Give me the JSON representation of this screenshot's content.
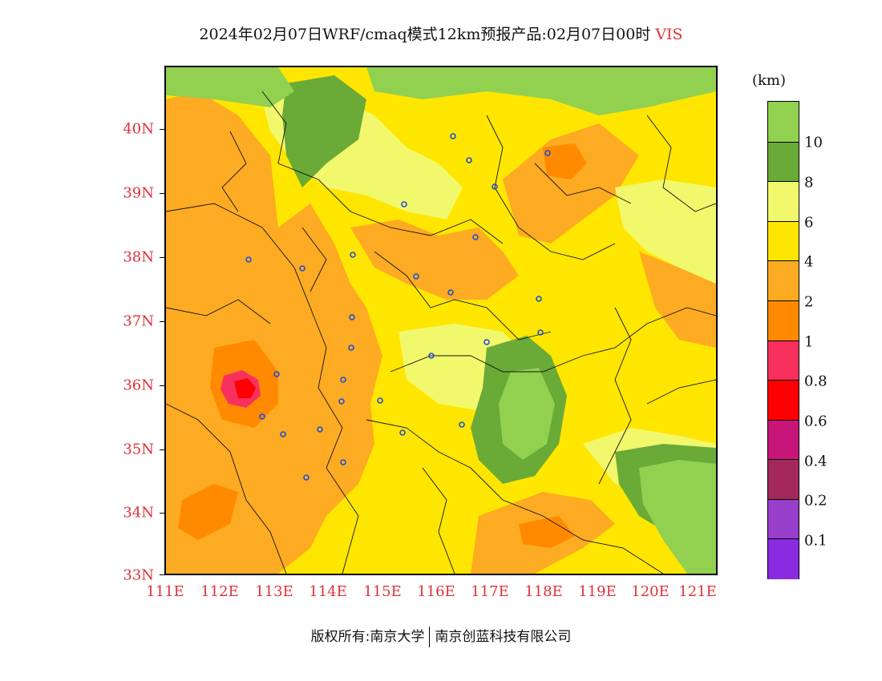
{
  "title": {
    "main": "2024年02月07日WRF/cmaq模式12km预报产品:02月07日00时",
    "variable": "VIS"
  },
  "map": {
    "lat_labels": [
      "40N",
      "39N",
      "38N",
      "37N",
      "36N",
      "35N",
      "34N",
      "33N"
    ],
    "lon_labels": [
      "111E",
      "112E",
      "113E",
      "114E",
      "115E",
      "116E",
      "117E",
      "118E",
      "119E",
      "120E",
      "121E"
    ]
  },
  "colorbar": {
    "unit": "(km)",
    "labels": [
      "10",
      "8",
      "6",
      "4",
      "2",
      "1",
      "0.8",
      "0.6",
      "0.4",
      "0.2",
      "0.1"
    ],
    "colors": [
      "#92d050",
      "#6aaa37",
      "#f2f86c",
      "#ffe600",
      "#fdab22",
      "#ff8a00",
      "#f7305e",
      "#ff0000",
      "#c8157a",
      "#a4285b",
      "#9a3ecc",
      "#8a2be2"
    ]
  },
  "credit": {
    "left": "版权所有:南京大学",
    "right": "南京创蓝科技有限公司"
  }
}
